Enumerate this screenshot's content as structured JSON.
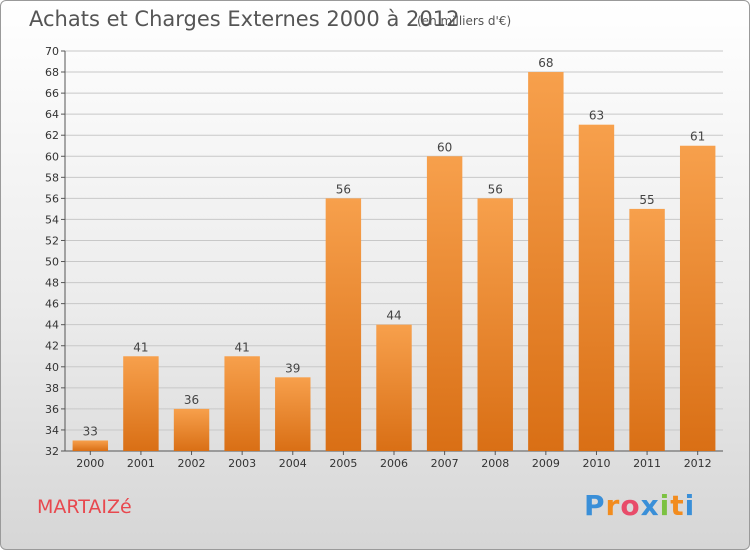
{
  "header": {
    "title": "Achats et Charges Externes 2000 à 2012",
    "unit": "(en milliers d'€)"
  },
  "footer": {
    "commune": "MARTAIZé",
    "logo_letters": [
      "P",
      "r",
      "o",
      "x",
      "i",
      "t",
      "i"
    ],
    "logo_colors": [
      "#3a8fd8",
      "#f28c1e",
      "#e84c6a",
      "#3a8fd8",
      "#7cc242",
      "#f28c1e",
      "#3a8fd8"
    ]
  },
  "colors": {
    "bar_light": "#f7a04c",
    "bar_dark": "#d96f15",
    "grid": "#c8c8c8"
  },
  "chart_data": {
    "type": "bar",
    "title": "Achats et Charges Externes 2000 à 2012",
    "unit": "(en milliers d'€)",
    "categories": [
      "2000",
      "2001",
      "2002",
      "2003",
      "2004",
      "2005",
      "2006",
      "2007",
      "2008",
      "2009",
      "2010",
      "2011",
      "2012"
    ],
    "values": [
      33,
      41,
      36,
      41,
      39,
      56,
      44,
      60,
      56,
      68,
      63,
      55,
      61
    ],
    "ylim": [
      32,
      70
    ],
    "yticks": [
      32,
      34,
      36,
      38,
      40,
      42,
      44,
      46,
      48,
      50,
      52,
      54,
      56,
      58,
      60,
      62,
      64,
      66,
      68,
      70
    ],
    "grid": true,
    "show_value_labels": true
  }
}
